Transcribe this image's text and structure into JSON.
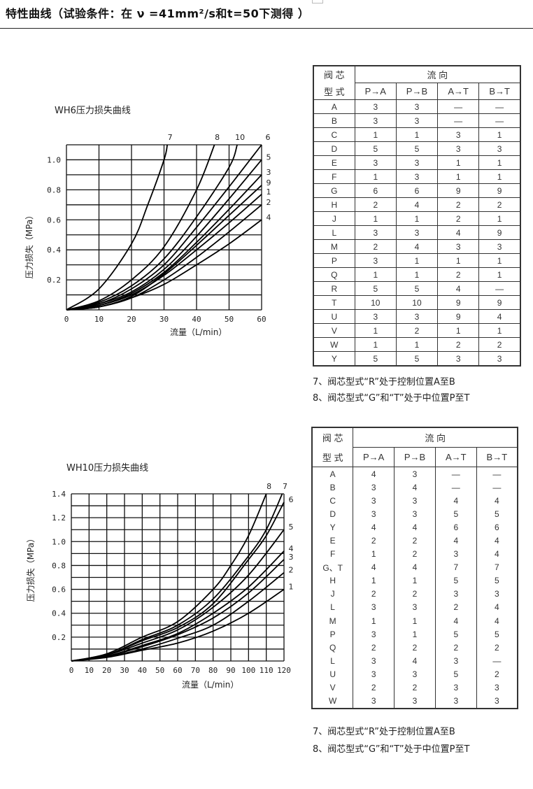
{
  "page": {
    "title": "特性曲线（试验条件：在 ν =41mm²/s和t=50下测得 ）"
  },
  "chart_data": [
    {
      "type": "line",
      "title": "WH6压力损失曲线",
      "xlabel": "流量（L/min）",
      "ylabel": "压力损失（MPa）",
      "xlim": [
        0,
        60
      ],
      "ylim": [
        0,
        1.1
      ],
      "xticks": [
        "0",
        "10",
        "20",
        "30",
        "40",
        "50",
        "60"
      ],
      "yticks": [
        "0.2",
        "0.4",
        "0.6",
        "0.8",
        "1.0"
      ],
      "grid": true,
      "series": [
        {
          "name": "7",
          "points": [
            [
              0,
              0
            ],
            [
              10,
              0.14
            ],
            [
              20,
              0.44
            ],
            [
              25,
              0.7
            ],
            [
              30,
              1.0
            ],
            [
              31,
              1.1
            ]
          ]
        },
        {
          "name": "8",
          "points": [
            [
              0,
              0
            ],
            [
              10,
              0.06
            ],
            [
              20,
              0.2
            ],
            [
              30,
              0.42
            ],
            [
              40,
              0.8
            ],
            [
              45.5,
              1.1
            ]
          ]
        },
        {
          "name": "10",
          "points": [
            [
              0,
              0
            ],
            [
              10,
              0.05
            ],
            [
              20,
              0.16
            ],
            [
              30,
              0.34
            ],
            [
              40,
              0.62
            ],
            [
              50,
              0.95
            ],
            [
              52.5,
              1.1
            ]
          ]
        },
        {
          "name": "6",
          "points": [
            [
              0,
              0
            ],
            [
              10,
              0.04
            ],
            [
              20,
              0.14
            ],
            [
              30,
              0.3
            ],
            [
              40,
              0.55
            ],
            [
              50,
              0.82
            ],
            [
              60,
              1.1
            ]
          ]
        },
        {
          "name": "5",
          "points": [
            [
              0,
              0
            ],
            [
              10,
              0.04
            ],
            [
              20,
              0.12
            ],
            [
              30,
              0.27
            ],
            [
              40,
              0.49
            ],
            [
              50,
              0.74
            ],
            [
              60,
              1.0
            ]
          ]
        },
        {
          "name": "3",
          "points": [
            [
              0,
              0
            ],
            [
              10,
              0.03
            ],
            [
              20,
              0.11
            ],
            [
              30,
              0.25
            ],
            [
              40,
              0.45
            ],
            [
              50,
              0.67
            ],
            [
              60,
              0.9
            ]
          ]
        },
        {
          "name": "9",
          "points": [
            [
              0,
              0
            ],
            [
              10,
              0.02
            ],
            [
              20,
              0.09
            ],
            [
              30,
              0.24
            ],
            [
              40,
              0.43
            ],
            [
              50,
              0.63
            ],
            [
              60,
              0.83
            ]
          ]
        },
        {
          "name": "1",
          "points": [
            [
              0,
              0
            ],
            [
              10,
              0.03
            ],
            [
              20,
              0.1
            ],
            [
              30,
              0.23
            ],
            [
              40,
              0.4
            ],
            [
              50,
              0.58
            ],
            [
              60,
              0.77
            ]
          ]
        },
        {
          "name": "2",
          "points": [
            [
              0,
              0
            ],
            [
              10,
              0.02
            ],
            [
              20,
              0.08
            ],
            [
              30,
              0.2
            ],
            [
              40,
              0.35
            ],
            [
              50,
              0.52
            ],
            [
              60,
              0.7
            ]
          ]
        },
        {
          "name": "4",
          "points": [
            [
              0,
              0
            ],
            [
              10,
              0.02
            ],
            [
              20,
              0.08
            ],
            [
              30,
              0.17
            ],
            [
              40,
              0.3
            ],
            [
              50,
              0.44
            ],
            [
              60,
              0.6
            ]
          ]
        }
      ]
    },
    {
      "type": "line",
      "title": "WH10压力损失曲线",
      "xlabel": "流量（L/min）",
      "ylabel": "压力损失（MPa）",
      "xlim": [
        0,
        120
      ],
      "ylim": [
        0,
        1.4
      ],
      "xticks": [
        "0",
        "10",
        "20",
        "30",
        "40",
        "50",
        "60",
        "70",
        "80",
        "90",
        "100",
        "110",
        "120"
      ],
      "yticks": [
        "0.2",
        "0.4",
        "0.6",
        "0.8",
        "1.0",
        "1.2",
        "1.4"
      ],
      "grid": true,
      "series": [
        {
          "name": "8",
          "points": [
            [
              0,
              0
            ],
            [
              20,
              0.06
            ],
            [
              40,
              0.2
            ],
            [
              60,
              0.33
            ],
            [
              80,
              0.6
            ],
            [
              90,
              0.8
            ],
            [
              100,
              1.05
            ],
            [
              110,
              1.4
            ]
          ]
        },
        {
          "name": "7",
          "points": [
            [
              0,
              0
            ],
            [
              20,
              0.05
            ],
            [
              40,
              0.18
            ],
            [
              60,
              0.3
            ],
            [
              80,
              0.52
            ],
            [
              100,
              0.88
            ],
            [
              110,
              1.1
            ],
            [
              119,
              1.4
            ]
          ]
        },
        {
          "name": "6",
          "points": [
            [
              0,
              0
            ],
            [
              20,
              0.05
            ],
            [
              40,
              0.17
            ],
            [
              60,
              0.28
            ],
            [
              80,
              0.48
            ],
            [
              100,
              0.85
            ],
            [
              110,
              1.05
            ],
            [
              120,
              1.33
            ]
          ]
        },
        {
          "name": "5",
          "points": [
            [
              0,
              0
            ],
            [
              20,
              0.05
            ],
            [
              40,
              0.15
            ],
            [
              60,
              0.26
            ],
            [
              80,
              0.45
            ],
            [
              100,
              0.72
            ],
            [
              120,
              1.1
            ]
          ]
        },
        {
          "name": "4",
          "points": [
            [
              0,
              0
            ],
            [
              20,
              0.04
            ],
            [
              40,
              0.13
            ],
            [
              60,
              0.23
            ],
            [
              80,
              0.4
            ],
            [
              100,
              0.62
            ],
            [
              120,
              0.92
            ]
          ]
        },
        {
          "name": "3",
          "points": [
            [
              0,
              0
            ],
            [
              20,
              0.04
            ],
            [
              40,
              0.12
            ],
            [
              60,
              0.22
            ],
            [
              80,
              0.36
            ],
            [
              100,
              0.57
            ],
            [
              120,
              0.85
            ]
          ]
        },
        {
          "name": "2",
          "points": [
            [
              0,
              0
            ],
            [
              20,
              0.035
            ],
            [
              40,
              0.1
            ],
            [
              60,
              0.19
            ],
            [
              80,
              0.3
            ],
            [
              100,
              0.5
            ],
            [
              120,
              0.74
            ]
          ]
        },
        {
          "name": "1",
          "points": [
            [
              0,
              0
            ],
            [
              20,
              0.03
            ],
            [
              40,
              0.09
            ],
            [
              60,
              0.15
            ],
            [
              80,
              0.25
            ],
            [
              100,
              0.4
            ],
            [
              120,
              0.6
            ]
          ]
        }
      ]
    }
  ],
  "tables": [
    {
      "header_type": "阀 芯",
      "header_type2": "型 式",
      "header_flow": "流 向",
      "columns": [
        "P→A",
        "P→B",
        "A→T",
        "B→T"
      ],
      "rows": [
        [
          "A",
          "3",
          "3",
          "—",
          "—"
        ],
        [
          "B",
          "3",
          "3",
          "—",
          "—"
        ],
        [
          "C",
          "1",
          "1",
          "3",
          "1"
        ],
        [
          "D",
          "5",
          "5",
          "3",
          "3"
        ],
        [
          "E",
          "3",
          "3",
          "1",
          "1"
        ],
        [
          "F",
          "1",
          "3",
          "1",
          "1"
        ],
        [
          "G",
          "6",
          "6",
          "9",
          "9"
        ],
        [
          "H",
          "2",
          "4",
          "2",
          "2"
        ],
        [
          "J",
          "1",
          "1",
          "2",
          "1"
        ],
        [
          "L",
          "3",
          "3",
          "4",
          "9"
        ],
        [
          "M",
          "2",
          "4",
          "3",
          "3"
        ],
        [
          "P",
          "3",
          "1",
          "1",
          "1"
        ],
        [
          "Q",
          "1",
          "1",
          "2",
          "1"
        ],
        [
          "R",
          "5",
          "5",
          "4",
          "—"
        ],
        [
          "T",
          "10",
          "10",
          "9",
          "9"
        ],
        [
          "U",
          "3",
          "3",
          "9",
          "4"
        ],
        [
          "V",
          "1",
          "2",
          "1",
          "1"
        ],
        [
          "W",
          "1",
          "1",
          "2",
          "2"
        ],
        [
          "Y",
          "5",
          "5",
          "3",
          "3"
        ]
      ],
      "notes": [
        "7、阀芯型式“R”处于控制位置A至B",
        "8、阀芯型式“G”和“T”处于中位置P至T"
      ]
    },
    {
      "header_type": "阀 芯",
      "header_type2": "型 式",
      "header_flow": "流 向",
      "columns": [
        "P→A",
        "P→B",
        "A→T",
        "B→T"
      ],
      "rows": [
        [
          "A",
          "4",
          "3",
          "—",
          "—"
        ],
        [
          "B",
          "3",
          "4",
          "—",
          "—"
        ],
        [
          "C",
          "3",
          "3",
          "4",
          "4"
        ],
        [
          "D",
          "3",
          "3",
          "5",
          "5"
        ],
        [
          "Y",
          "4",
          "4",
          "6",
          "6"
        ],
        [
          "E",
          "2",
          "2",
          "4",
          "4"
        ],
        [
          "F",
          "1",
          "2",
          "3",
          "4"
        ],
        [
          "G、T",
          "4",
          "4",
          "7",
          "7"
        ],
        [
          "H",
          "1",
          "1",
          "5",
          "5"
        ],
        [
          "J",
          "2",
          "2",
          "3",
          "3"
        ],
        [
          "L",
          "3",
          "3",
          "2",
          "4"
        ],
        [
          "M",
          "1",
          "1",
          "4",
          "4"
        ],
        [
          "P",
          "3",
          "1",
          "5",
          "5"
        ],
        [
          "Q",
          "2",
          "2",
          "2",
          "2"
        ],
        [
          "L",
          "3",
          "4",
          "3",
          "—"
        ],
        [
          "U",
          "3",
          "3",
          "5",
          "2"
        ],
        [
          "V",
          "2",
          "2",
          "3",
          "3"
        ],
        [
          "W",
          "3",
          "3",
          "3",
          "3"
        ]
      ],
      "notes": [
        "7、阀芯型式“R”处于控制位置A至B",
        "8、阀芯型式“G”和“T”处于中位置P至T"
      ]
    }
  ]
}
